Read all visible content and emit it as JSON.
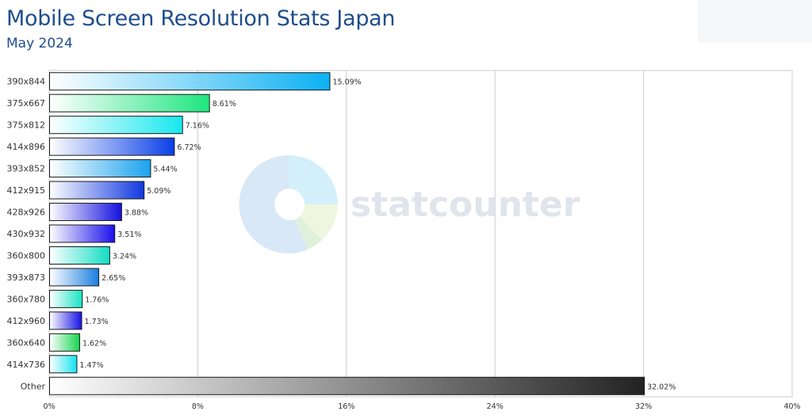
{
  "title": "Mobile Screen Resolution Stats Japan",
  "subtitle": "May 2024",
  "watermark": "statcounter",
  "chart_data": {
    "type": "bar",
    "orientation": "horizontal",
    "categories": [
      "390x844",
      "375x667",
      "375x812",
      "414x896",
      "393x852",
      "412x915",
      "428x926",
      "430x932",
      "360x800",
      "393x873",
      "360x780",
      "412x960",
      "360x640",
      "414x736",
      "Other"
    ],
    "values": [
      15.09,
      8.61,
      7.16,
      6.72,
      5.44,
      5.09,
      3.88,
      3.51,
      3.24,
      2.65,
      1.76,
      1.73,
      1.62,
      1.47,
      32.02
    ],
    "value_labels": [
      "15.09%",
      "8.61%",
      "7.16%",
      "6.72%",
      "5.44%",
      "5.09%",
      "3.88%",
      "3.51%",
      "3.24%",
      "2.65%",
      "1.76%",
      "1.73%",
      "1.62%",
      "1.47%",
      "32.02%"
    ],
    "bar_colors": [
      "#0cb1f3",
      "#1ee57e",
      "#17e8ee",
      "#0a3fe8",
      "#1aa2ee",
      "#1138e0",
      "#1410de",
      "#1a10ea",
      "#12ddc4",
      "#197ede",
      "#17e3c4",
      "#1711e3",
      "#16d54f",
      "#15e3f0",
      "#222222"
    ],
    "xticks": [
      "0%",
      "8%",
      "16%",
      "24%",
      "32%",
      "40%"
    ],
    "xlim": [
      0,
      40
    ],
    "grid": true
  }
}
